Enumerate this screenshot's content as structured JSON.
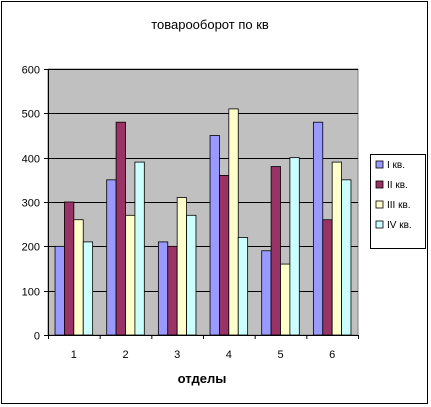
{
  "chart_data": {
    "type": "bar",
    "title": "товарооборот по кв",
    "xlabel": "отделы",
    "ylabel": "",
    "categories": [
      "1",
      "2",
      "3",
      "4",
      "5",
      "6"
    ],
    "ylim": [
      0,
      600
    ],
    "yticks": [
      0,
      100,
      200,
      300,
      400,
      500,
      600
    ],
    "grid": true,
    "plot_background": "#c0c0c0",
    "legend_position": "right",
    "series": [
      {
        "name": "I кв.",
        "color": "#9999ff",
        "values": [
          200,
          350,
          210,
          450,
          190,
          480
        ]
      },
      {
        "name": "II кв.",
        "color": "#993366",
        "values": [
          300,
          480,
          200,
          360,
          380,
          260
        ]
      },
      {
        "name": "III кв.",
        "color": "#ffffcc",
        "values": [
          260,
          270,
          310,
          510,
          160,
          390
        ]
      },
      {
        "name": "IV кв.",
        "color": "#ccffff",
        "values": [
          210,
          390,
          270,
          220,
          400,
          350
        ]
      }
    ]
  }
}
